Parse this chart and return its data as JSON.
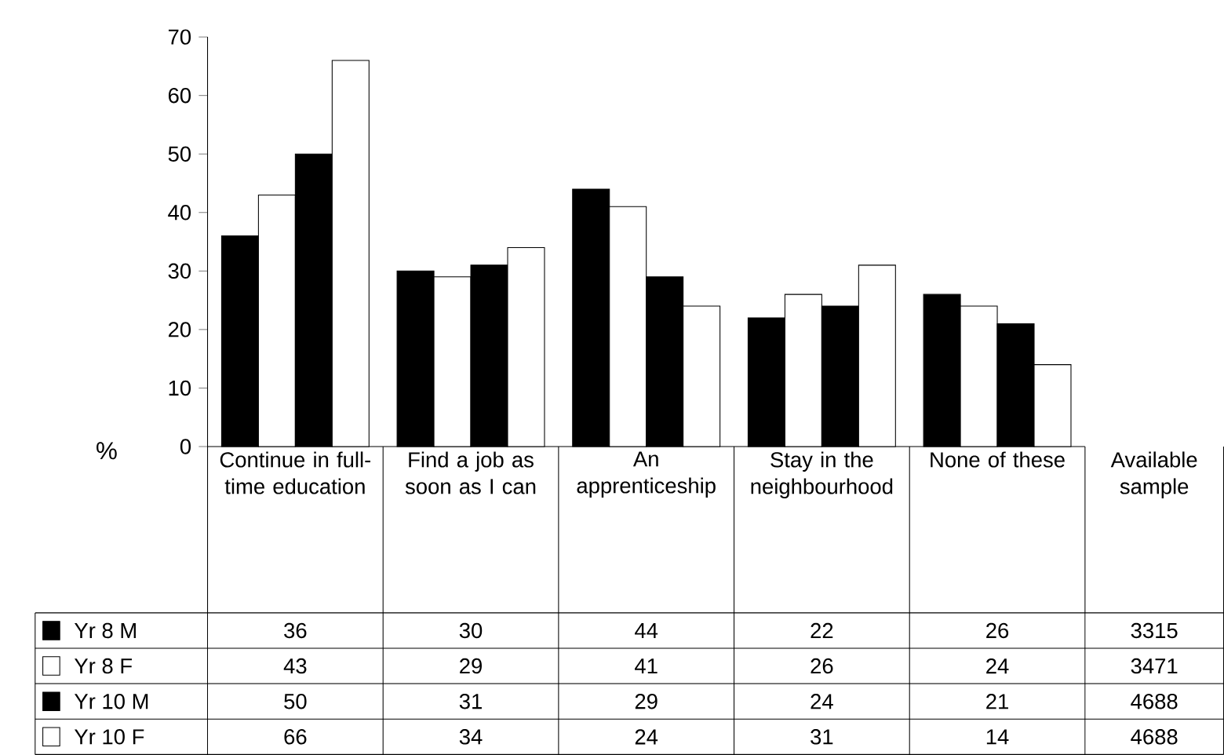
{
  "chart_data": {
    "type": "bar",
    "ylabel": "%",
    "categories": [
      "Continue in full-time education",
      "Find a job as soon as I can",
      "An apprenticeship",
      "Stay in the neighbourhood",
      "None of these",
      "Available sample"
    ],
    "series": [
      {
        "name": "Yr 8 M",
        "color": "#000000",
        "values": [
          36,
          30,
          44,
          22,
          26,
          null
        ],
        "value_labels": [
          "36",
          "30",
          "44",
          "22",
          "26",
          "3315"
        ]
      },
      {
        "name": "Yr 8 F",
        "color": "#ffffff",
        "values": [
          43,
          29,
          41,
          26,
          24,
          null
        ],
        "value_labels": [
          "43",
          "29",
          "41",
          "26",
          "24",
          "3471"
        ]
      },
      {
        "name": "Yr 10 M",
        "color": "#000000",
        "values": [
          50,
          31,
          29,
          24,
          21,
          null
        ],
        "value_labels": [
          "50",
          "31",
          "29",
          "24",
          "21",
          "4688"
        ]
      },
      {
        "name": "Yr 10 F",
        "color": "#ffffff",
        "values": [
          66,
          34,
          24,
          31,
          14,
          null
        ],
        "value_labels": [
          "66",
          "34",
          "24",
          "31",
          "14",
          "4688"
        ]
      }
    ],
    "legend": "bottom left",
    "ylim": [
      0,
      70
    ],
    "yticks": [
      0,
      10,
      20,
      30,
      40,
      50,
      60,
      70
    ]
  }
}
